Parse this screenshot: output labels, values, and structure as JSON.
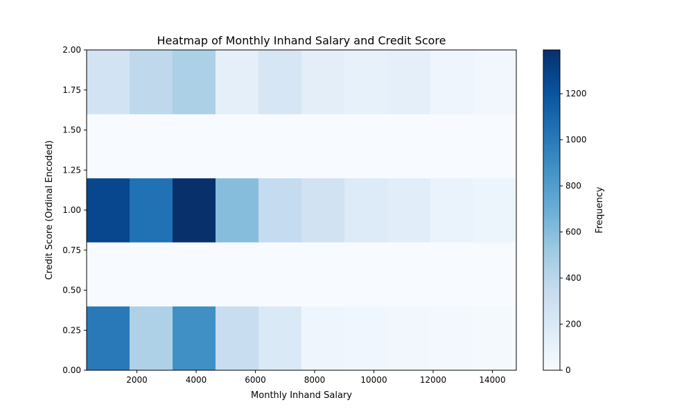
{
  "chart_data": {
    "type": "heatmap",
    "title": "Heatmap of Monthly Inhand Salary and Credit Score",
    "xlabel": "Monthly Inhand Salary",
    "ylabel": "Credit Score (Ordinal Encoded)",
    "xlim": [
      303.6,
      14807.0
    ],
    "ylim": [
      0,
      2
    ],
    "x_bins": 10,
    "y_bins": 5,
    "x_ticks": [
      2000,
      4000,
      6000,
      8000,
      10000,
      12000,
      14000
    ],
    "x_tick_labels": [
      "2000",
      "4000",
      "6000",
      "8000",
      "10000",
      "12000",
      "14000"
    ],
    "y_ticks": [
      0.0,
      0.25,
      0.5,
      0.75,
      1.0,
      1.25,
      1.5,
      1.75,
      2.0
    ],
    "y_tick_labels": [
      "0.00",
      "0.25",
      "0.50",
      "0.75",
      "1.00",
      "1.25",
      "1.50",
      "1.75",
      "2.00"
    ],
    "colormap": "Blues",
    "colorbar": {
      "label": "Frequency",
      "range": [
        0,
        1390
      ],
      "ticks": [
        0,
        200,
        400,
        600,
        800,
        1000,
        1200
      ],
      "tick_labels": [
        "0",
        "200",
        "400",
        "600",
        "800",
        "1000",
        "1200"
      ]
    },
    "values": [
      [
        1000,
        450,
        880,
        330,
        200,
        60,
        50,
        40,
        30,
        20
      ],
      [
        0,
        0,
        0,
        0,
        0,
        0,
        0,
        0,
        0,
        0
      ],
      [
        1270,
        1040,
        1390,
        600,
        350,
        270,
        180,
        150,
        90,
        70
      ],
      [
        0,
        0,
        0,
        0,
        0,
        0,
        0,
        0,
        0,
        0
      ],
      [
        260,
        380,
        460,
        130,
        230,
        140,
        110,
        130,
        60,
        40
      ]
    ],
    "grid": false
  }
}
